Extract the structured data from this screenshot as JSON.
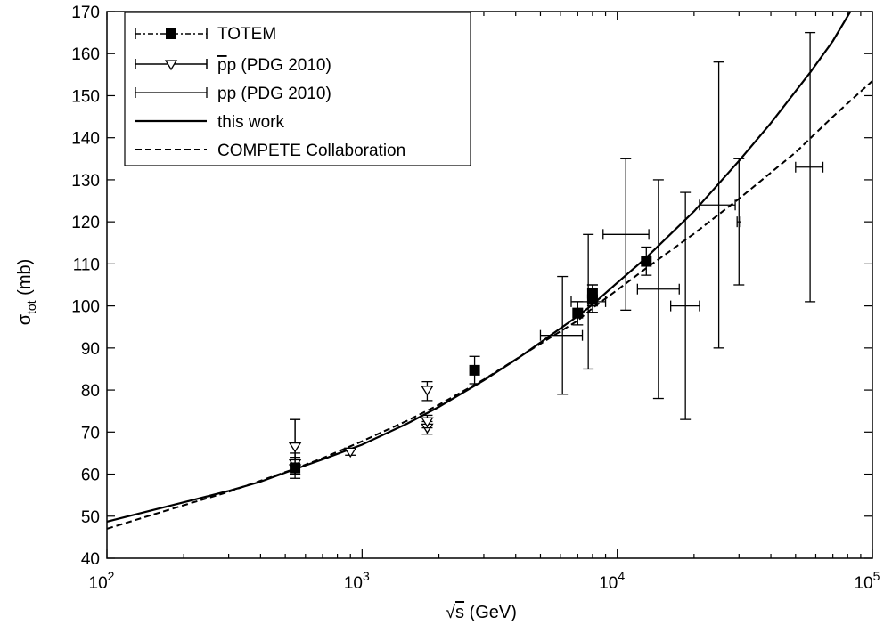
{
  "chart_data": {
    "type": "scatter",
    "xscale": "log",
    "xlim": [
      100,
      100000
    ],
    "ylim": [
      40,
      170
    ],
    "yticks": [
      40,
      50,
      60,
      70,
      80,
      90,
      100,
      110,
      120,
      130,
      140,
      150,
      160,
      170
    ],
    "xticks": [
      {
        "value": 100,
        "base": "10",
        "exp": "2"
      },
      {
        "value": 1000,
        "base": "10",
        "exp": "3"
      },
      {
        "value": 10000,
        "base": "10",
        "exp": "4"
      },
      {
        "value": 100000,
        "base": "10",
        "exp": "5"
      }
    ],
    "xlabel": {
      "root": "√",
      "var": "s",
      "unit": " (GeV)"
    },
    "ylabel": {
      "main": "σ",
      "sub": "tot",
      "unit": " (mb)"
    },
    "legend_position": "top-left",
    "legend": [
      {
        "key": "totem",
        "label": "TOTEM"
      },
      {
        "key": "ppbar",
        "label": "pp (PDG 2010)",
        "overline": "p"
      },
      {
        "key": "pp",
        "label": "pp (PDG 2010)"
      },
      {
        "key": "thiswork",
        "label": "this work"
      },
      {
        "key": "compete",
        "label": "COMPETE Collaboration"
      }
    ],
    "series": {
      "totem": [
        {
          "x": 546,
          "y": 61.5,
          "ylo": 59,
          "yhi": 64
        },
        {
          "x": 2760,
          "y": 84.7,
          "ylo": 81.5,
          "yhi": 88
        },
        {
          "x": 7000,
          "y": 98.3,
          "ylo": 95.5,
          "yhi": 101
        },
        {
          "x": 8000,
          "y": 101.5,
          "ylo": 98.5,
          "yhi": 105
        },
        {
          "x": 8000,
          "y": 103,
          "ylo": 100,
          "yhi": 105
        },
        {
          "x": 13000,
          "y": 110.6,
          "ylo": 107.3,
          "yhi": 114
        }
      ],
      "ppbar": [
        {
          "x": 546,
          "y": 61.3,
          "ylo": 60,
          "yhi": 73
        },
        {
          "x": 546,
          "y": 62.5,
          "ylo": 60,
          "yhi": 65
        },
        {
          "x": 546,
          "y": 66.5,
          "ylo": 60,
          "yhi": 73
        },
        {
          "x": 900,
          "y": 65.3,
          "ylo": 64.5,
          "yhi": 66
        },
        {
          "x": 1800,
          "y": 71,
          "ylo": 69.5,
          "yhi": 72.5
        },
        {
          "x": 1800,
          "y": 72.5,
          "ylo": 71,
          "yhi": 74
        },
        {
          "x": 1800,
          "y": 80,
          "ylo": 77.5,
          "yhi": 82
        }
      ],
      "pp": [
        {
          "x": 6100,
          "y": 93,
          "ylo": 79,
          "yhi": 107,
          "xlo": 5000,
          "xhi": 7300
        },
        {
          "x": 7700,
          "y": 101,
          "ylo": 85,
          "yhi": 117,
          "xlo": 6600,
          "xhi": 9000
        },
        {
          "x": 10800,
          "y": 117,
          "ylo": 99,
          "yhi": 135,
          "xlo": 8800,
          "xhi": 13300
        },
        {
          "x": 14500,
          "y": 104,
          "ylo": 78,
          "yhi": 130,
          "xlo": 12000,
          "xhi": 17500
        },
        {
          "x": 18500,
          "y": 100,
          "ylo": 73,
          "yhi": 127,
          "xlo": 16200,
          "xhi": 21000
        },
        {
          "x": 25000,
          "y": 124,
          "ylo": 90,
          "yhi": 158,
          "xlo": 21000,
          "xhi": 29000
        },
        {
          "x": 30000,
          "y": 120,
          "ylo": 105,
          "yhi": 135,
          "xlo": 29500,
          "xhi": 30500
        },
        {
          "x": 57000,
          "y": 133,
          "ylo": 101,
          "yhi": 165,
          "xlo": 50000,
          "xhi": 64000
        }
      ],
      "thiswork": [
        {
          "x": 100,
          "y": 48.7
        },
        {
          "x": 150,
          "y": 51.4
        },
        {
          "x": 200,
          "y": 53.3
        },
        {
          "x": 300,
          "y": 56.0
        },
        {
          "x": 400,
          "y": 58.2
        },
        {
          "x": 546,
          "y": 61.2
        },
        {
          "x": 700,
          "y": 63.5
        },
        {
          "x": 1000,
          "y": 67.0
        },
        {
          "x": 1500,
          "y": 72.0
        },
        {
          "x": 2000,
          "y": 76.0
        },
        {
          "x": 3000,
          "y": 82.3
        },
        {
          "x": 4000,
          "y": 87.2
        },
        {
          "x": 5000,
          "y": 91.3
        },
        {
          "x": 7000,
          "y": 97.6
        },
        {
          "x": 8000,
          "y": 100.3
        },
        {
          "x": 10000,
          "y": 105.5
        },
        {
          "x": 13000,
          "y": 111.5
        },
        {
          "x": 20000,
          "y": 122.5
        },
        {
          "x": 30000,
          "y": 134.5
        },
        {
          "x": 40000,
          "y": 143.5
        },
        {
          "x": 57000,
          "y": 155.5
        },
        {
          "x": 70000,
          "y": 163.0
        },
        {
          "x": 82000,
          "y": 170.0
        }
      ],
      "compete": [
        {
          "x": 100,
          "y": 47.0
        },
        {
          "x": 150,
          "y": 50.3
        },
        {
          "x": 200,
          "y": 52.6
        },
        {
          "x": 300,
          "y": 55.8
        },
        {
          "x": 546,
          "y": 61.3
        },
        {
          "x": 700,
          "y": 63.8
        },
        {
          "x": 1000,
          "y": 67.8
        },
        {
          "x": 1500,
          "y": 72.7
        },
        {
          "x": 2000,
          "y": 76.5
        },
        {
          "x": 3000,
          "y": 82.5
        },
        {
          "x": 5000,
          "y": 91.0
        },
        {
          "x": 7000,
          "y": 96.5
        },
        {
          "x": 8000,
          "y": 99.5
        },
        {
          "x": 10000,
          "y": 103.8
        },
        {
          "x": 13000,
          "y": 109.0
        },
        {
          "x": 20000,
          "y": 117.2
        },
        {
          "x": 30000,
          "y": 125.5
        },
        {
          "x": 50000,
          "y": 136.5
        },
        {
          "x": 70000,
          "y": 145.0
        },
        {
          "x": 100000,
          "y": 153.5
        }
      ]
    }
  }
}
